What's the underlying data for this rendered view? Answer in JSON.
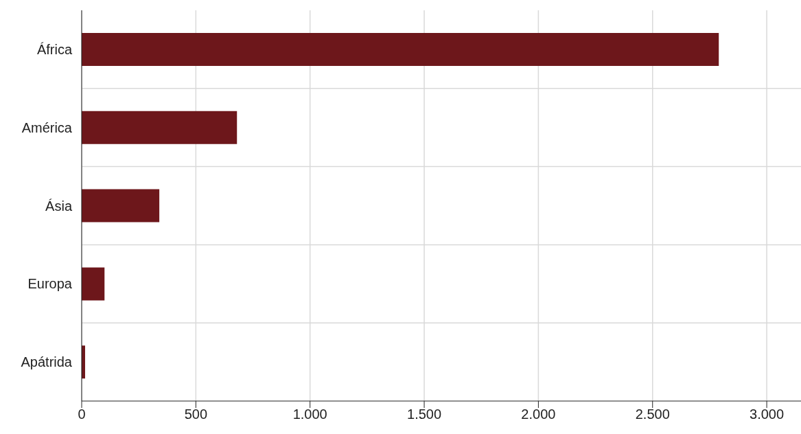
{
  "chart_data": {
    "type": "bar",
    "orientation": "horizontal",
    "categories": [
      "África",
      "América",
      "Ásia",
      "Europa",
      "Apátrida"
    ],
    "values": [
      2790,
      680,
      340,
      100,
      15
    ],
    "color": "#6d171b",
    "xlim": [
      0,
      3150
    ],
    "xticks": [
      0,
      {
        "value": 500,
        "label": "500"
      },
      {
        "value": 1000,
        "label": "1.000"
      },
      {
        "value": 1500,
        "label": "1.500"
      },
      {
        "value": 2000,
        "label": "2.000"
      },
      {
        "value": 2500,
        "label": "2.500"
      },
      {
        "value": 3000,
        "label": "3.000"
      }
    ],
    "grid": true
  }
}
